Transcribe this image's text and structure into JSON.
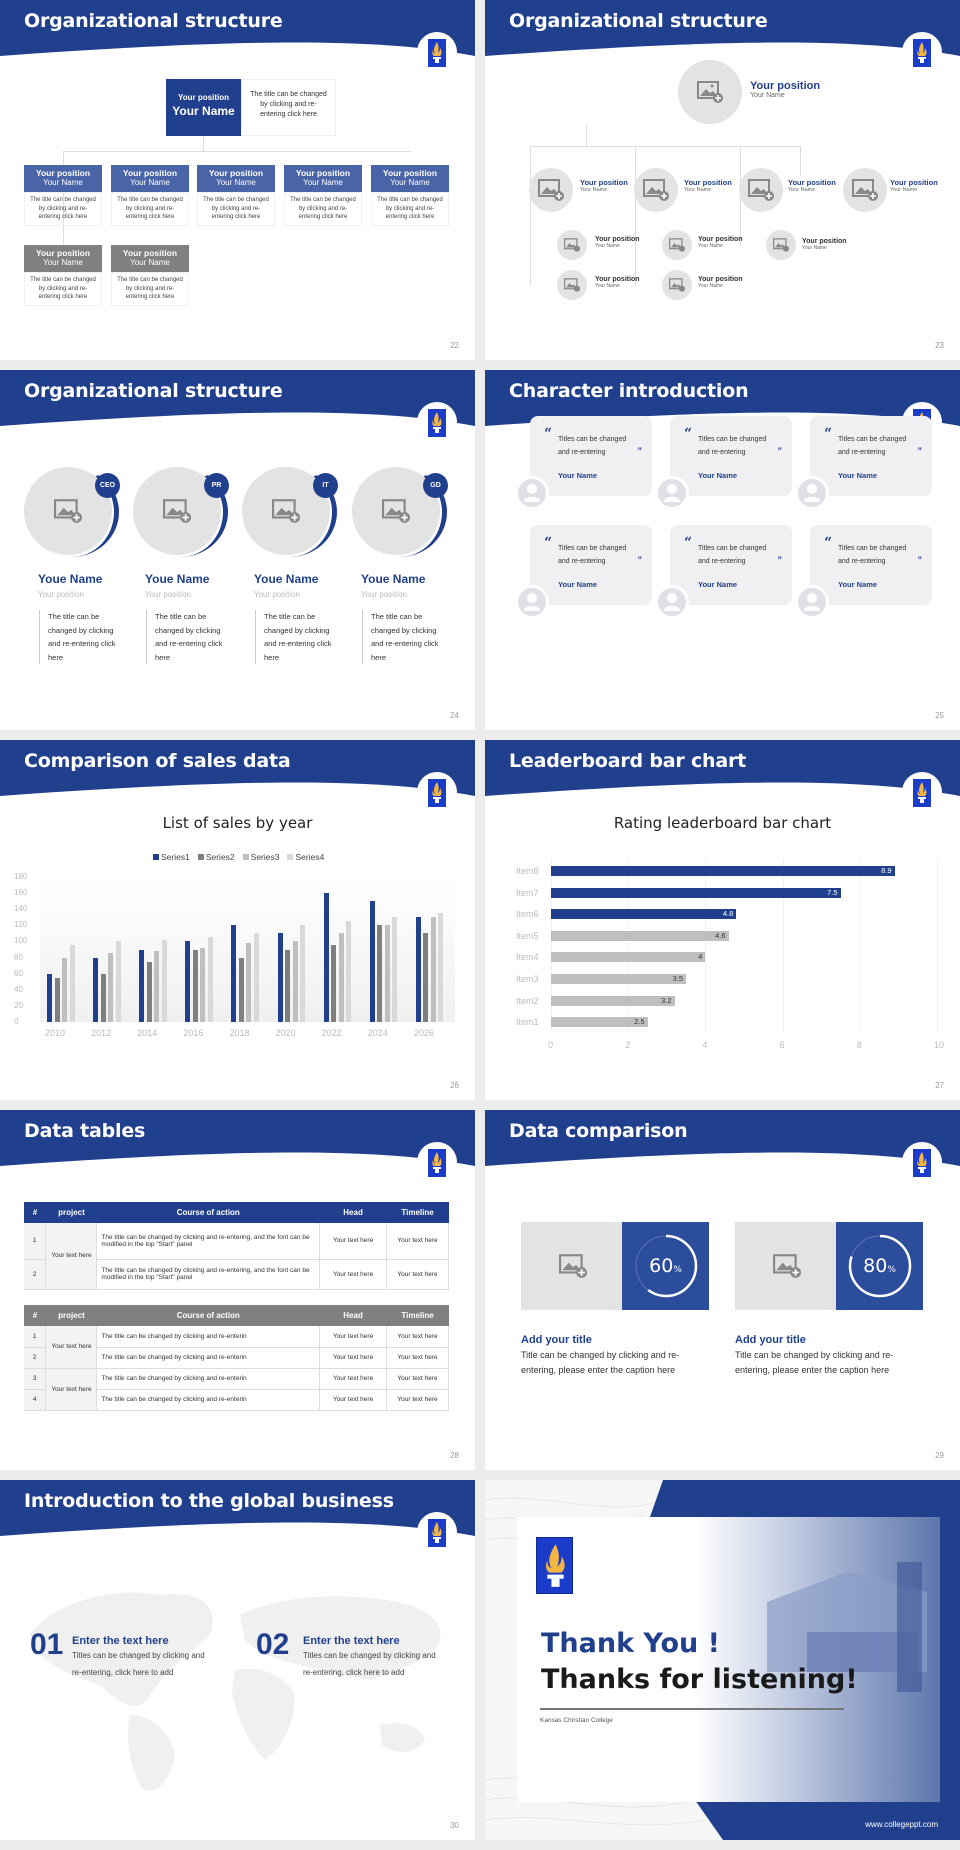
{
  "theme": {
    "primary": "#203f8c",
    "accent_grey": "#808080",
    "light_grey": "#e3e3e3"
  },
  "slides": {
    "s22": {
      "title": "Organizational structure",
      "page": "22",
      "top": {
        "position": "Your position",
        "name": "Your Name",
        "desc": "The title can be changed by clicking and re-entering click here"
      },
      "row1": [
        {
          "position": "Your position",
          "name": "Your Name",
          "desc": "The title can be changed by clicking and re-entering click here"
        },
        {
          "position": "Your position",
          "name": "Your Name",
          "desc": "The title can be changed by clicking and re-entering click here"
        },
        {
          "position": "Your position",
          "name": "Your Name",
          "desc": "The title can be changed by clicking and re-entering click here"
        },
        {
          "position": "Your position",
          "name": "Your Name",
          "desc": "The title can be changed by clicking and re-entering click here"
        },
        {
          "position": "Your position",
          "name": "Your Name",
          "desc": "The title can be changed by clicking and re-entering click here"
        }
      ],
      "row2": [
        {
          "position": "Your position",
          "name": "Your Name",
          "desc": "The title can be changed by clicking and re-entering click here"
        },
        {
          "position": "Your position",
          "name": "Your Name",
          "desc": "The title can be changed by clicking and re-entering click here"
        }
      ]
    },
    "s23": {
      "title": "Organizational structure",
      "page": "23",
      "top": {
        "position": "Your position",
        "name": "Your Name"
      },
      "level1": [
        {
          "position": "Your position",
          "name": "Your Name"
        },
        {
          "position": "Your position",
          "name": "Your Name"
        },
        {
          "position": "Your position",
          "name": "Your Name"
        },
        {
          "position": "Your position",
          "name": "Your Name"
        }
      ],
      "level2": [
        {
          "position": "Your position",
          "name": "Your Name"
        },
        {
          "position": "Your position",
          "name": "Your Name"
        },
        {
          "position": "Your position",
          "name": "Your Name"
        },
        {
          "position": "Your position",
          "name": "Your Name"
        },
        {
          "position": "Your position",
          "name": "Your Name"
        }
      ]
    },
    "s24": {
      "title": "Organizational structure",
      "page": "24",
      "people": [
        {
          "badge": "CEO",
          "name": "Youe Name",
          "position": "Your position",
          "desc": "The title can be changed by clicking and re-entering click here"
        },
        {
          "badge": "PR",
          "name": "Youe Name",
          "position": "Your position",
          "desc": "The title can be changed by clicking and re-entering click here"
        },
        {
          "badge": "IT",
          "name": "Youe Name",
          "position": "Your position",
          "desc": "The title can be changed by clicking and re-entering click here"
        },
        {
          "badge": "GD",
          "name": "Youe Name",
          "position": "Your position",
          "desc": "The title can be changed by clicking and re-entering click here"
        }
      ]
    },
    "s25": {
      "title": "Character introduction",
      "page": "25",
      "quote_open": "“",
      "quote_close": "”",
      "cards": [
        {
          "text": "Titles can be changed and re-entering",
          "name": "Your Name"
        },
        {
          "text": "Titles can be changed and re-entering",
          "name": "Your Name"
        },
        {
          "text": "Titles can be changed and re-entering",
          "name": "Your Name"
        },
        {
          "text": "Titles can be changed and re-entering",
          "name": "Your Name"
        },
        {
          "text": "Titles can be changed and re-entering",
          "name": "Your Name"
        },
        {
          "text": "Titles can be changed and re-entering",
          "name": "Your Name"
        }
      ]
    },
    "s26": {
      "title": "Comparison of sales data",
      "page": "26"
    },
    "s27": {
      "title": "Leaderboard bar chart",
      "page": "27"
    },
    "s28": {
      "title": "Data tables",
      "page": "28",
      "headers": [
        "#",
        "project",
        "Course of action",
        "Head",
        "Timeline"
      ],
      "table1": {
        "group": "Your text here",
        "rows": [
          {
            "num": "1",
            "action": "The title can be changed by clicking and re-entering, and the font can be modified in the top \"Start\" panel",
            "head": "Your text here",
            "timeline": "Your text here"
          },
          {
            "num": "2",
            "action": "The title can be changed by clicking and re-entering, and the font can be modified in the top \"Start\" panel",
            "head": "Your text here",
            "timeline": "Your text here"
          }
        ]
      },
      "table2": {
        "groups": [
          "Your text here",
          "Your text here"
        ],
        "rows": [
          {
            "num": "1",
            "action": "The title can be changed by clicking and re-enterin",
            "head": "Your text here",
            "timeline": "Your text here"
          },
          {
            "num": "2",
            "action": "The title can be changed by clicking and re-enterin",
            "head": "Your text here",
            "timeline": "Your text here"
          },
          {
            "num": "3",
            "action": "The title can be changed by clicking and re-enterin",
            "head": "Your text here",
            "timeline": "Your text here"
          },
          {
            "num": "4",
            "action": "The title can be changed by clicking and re-enterin",
            "head": "Your text here",
            "timeline": "Your text here"
          }
        ]
      }
    },
    "s29": {
      "title": "Data comparison",
      "page": "29",
      "items": [
        {
          "value": "60",
          "unit": "%",
          "percent": 60,
          "heading": "Add your title",
          "desc": "Title can be changed by clicking and re-entering, please enter the caption here"
        },
        {
          "value": "80",
          "unit": "%",
          "percent": 80,
          "heading": "Add your title",
          "desc": "Title can be changed by clicking and re-entering, please enter the caption here"
        }
      ]
    },
    "s30": {
      "title": "Introduction to the global business",
      "page": "30",
      "items": [
        {
          "num": "01",
          "heading": "Enter the text here",
          "text": "Titles can be changed by clicking and re-entering, click here to add"
        },
        {
          "num": "02",
          "heading": "Enter the text here",
          "text": "Titles can be changed by clicking and re-entering, click here to add"
        }
      ]
    },
    "s31": {
      "thank": "Thank You !",
      "thanks": "Thanks for listening!",
      "college": "Kansas Christian College",
      "url": "www.collegeppt.com"
    }
  },
  "chart_data": [
    {
      "type": "bar",
      "title": "List of sales by year",
      "categories": [
        "2010",
        "2012",
        "2014",
        "2016",
        "2018",
        "2020",
        "2022",
        "2024",
        "2026"
      ],
      "series": [
        {
          "name": "Series1",
          "color": "#203f8c",
          "values": [
            60,
            80,
            90,
            100,
            120,
            110,
            160,
            150,
            130
          ]
        },
        {
          "name": "Series2",
          "color": "#7f7f7f",
          "values": [
            55,
            60,
            75,
            90,
            80,
            90,
            96,
            120,
            110
          ]
        },
        {
          "name": "Series3",
          "color": "#bfbfbf",
          "values": [
            80,
            86,
            88,
            92,
            98,
            100,
            110,
            120,
            130
          ]
        },
        {
          "name": "Series4",
          "color": "#d9d9d9",
          "values": [
            95,
            100,
            102,
            105,
            110,
            120,
            126,
            130,
            135
          ]
        }
      ],
      "yticks": [
        "180",
        "160",
        "140",
        "120",
        "100",
        "80",
        "60",
        "40",
        "20",
        "0"
      ],
      "ylim": [
        0,
        180
      ],
      "legend_position": "top",
      "grid": true
    },
    {
      "type": "bar",
      "orientation": "horizontal",
      "title": "Rating leaderboard bar chart",
      "categories": [
        "Item8",
        "Item7",
        "Item6",
        "Item5",
        "Item4",
        "Item3",
        "Item2",
        "Item1"
      ],
      "values": [
        8.9,
        7.5,
        4.8,
        4.6,
        4,
        3.5,
        3.2,
        2.5
      ],
      "labels": [
        "8.9",
        "7.5",
        "4.8",
        "4.6",
        "4",
        "3.5",
        "3.2",
        "2.5"
      ],
      "highlight_colors": [
        "#203f8c",
        "#203f8c",
        "#203f8c",
        "#bfbfbf",
        "#bfbfbf",
        "#bfbfbf",
        "#bfbfbf",
        "#bfbfbf"
      ],
      "xticks": [
        "0",
        "2",
        "4",
        "6",
        "8",
        "10"
      ],
      "xlim": [
        0,
        10
      ],
      "grid": true
    }
  ]
}
